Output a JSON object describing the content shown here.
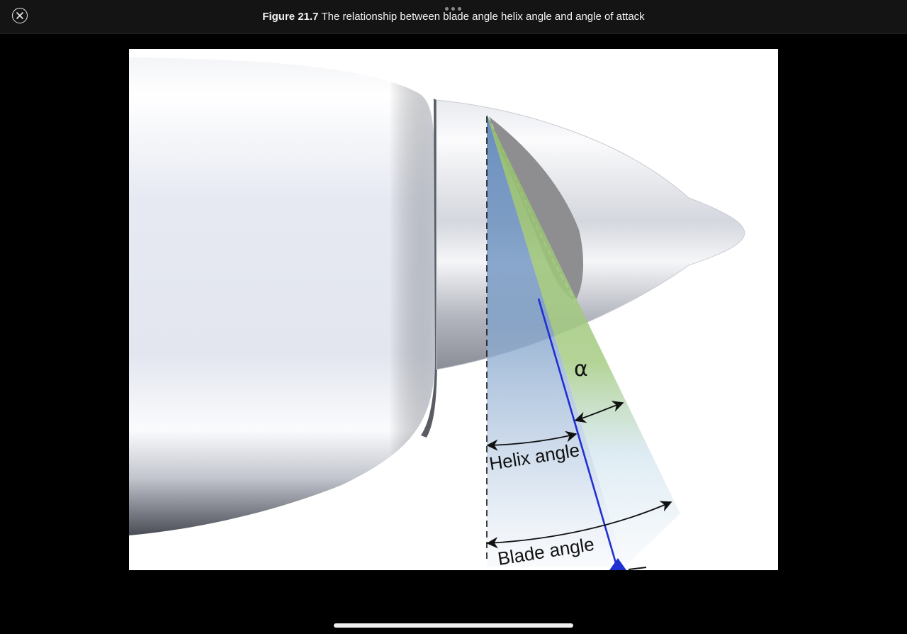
{
  "header": {
    "close_icon": "close-circle-icon",
    "figure_number": "Figure 21.7",
    "caption": "The relationship between blade angle  helix angle and angle of attack"
  },
  "figure": {
    "alpha_label": "α",
    "helix_label": "Helix angle",
    "blade_label": "Blade angle"
  },
  "colors": {
    "background": "#000000",
    "topbar": "#141414",
    "blade_line": "#1f2fd0",
    "helix_fill": "#6f93c0",
    "alpha_fill": "#9cc27a"
  }
}
